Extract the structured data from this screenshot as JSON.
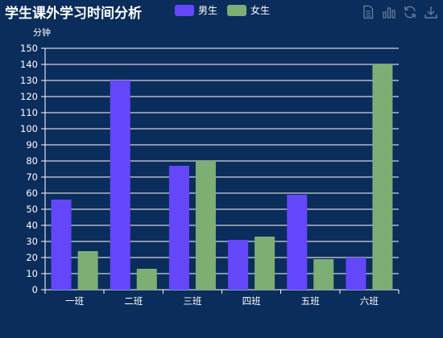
{
  "chart_data": {
    "type": "bar",
    "title": "学生课外学习时间分析",
    "ylabel": "分钟",
    "xlabel": "",
    "categories": [
      "一班",
      "二班",
      "三班",
      "四班",
      "五班",
      "六班"
    ],
    "series": [
      {
        "name": "男生",
        "color": "#6447fa",
        "values": [
          56,
          130,
          77,
          31,
          59,
          20
        ]
      },
      {
        "name": "女生",
        "color": "#7dae74",
        "values": [
          24,
          13,
          80,
          33,
          19,
          140
        ]
      }
    ],
    "ylim": [
      0,
      150
    ],
    "yticks": [
      0,
      10,
      20,
      30,
      40,
      50,
      60,
      70,
      80,
      90,
      100,
      110,
      120,
      130,
      140,
      150
    ],
    "grid": true,
    "legend_position": "top"
  },
  "toolbox": {
    "icons": [
      "data-view-icon",
      "bar-chart-icon",
      "refresh-icon",
      "download-icon"
    ]
  },
  "colors": {
    "background": "#0a2d5c",
    "axis": "#ffffff",
    "toolbox": "#6b7f99"
  }
}
